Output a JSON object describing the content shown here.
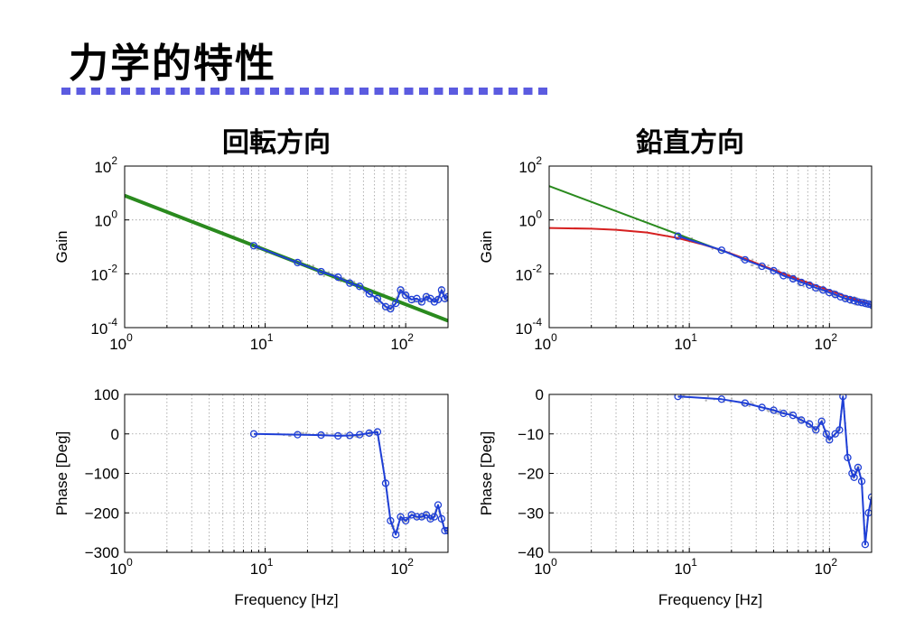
{
  "page": {
    "title": "力学的特性",
    "left_heading": "回転方向",
    "right_heading": "鉛直方向"
  },
  "colors": {
    "measurement": "#1f3fd6",
    "fit_green": "#2a8a1e",
    "fit_red": "#d62020",
    "raw_points": "#b8b8b8",
    "title_underline": "#5b5be0"
  },
  "chart_data": [
    {
      "id": "gain-rotation",
      "type": "line",
      "xscale": "log",
      "yscale": "log",
      "xlim": [
        1,
        200
      ],
      "ylim": [
        0.0001,
        100
      ],
      "xticks": [
        {
          "v": 1,
          "b": "10",
          "e": "0"
        },
        {
          "v": 10,
          "b": "10",
          "e": "1"
        },
        {
          "v": 100,
          "b": "10",
          "e": "2"
        }
      ],
      "yticks": [
        {
          "v": 0.0001,
          "b": "10",
          "e": "-4"
        },
        {
          "v": 0.01,
          "b": "10",
          "e": "-2"
        },
        {
          "v": 1,
          "b": "10",
          "e": "0"
        },
        {
          "v": 100,
          "b": "10",
          "e": "2"
        }
      ],
      "xlabel": "",
      "ylabel": "Gain",
      "grid": true,
      "series": [
        {
          "kind": "fit",
          "color": "#2a8a1e",
          "width": 4,
          "x": [
            1,
            200
          ],
          "y": [
            8.0,
            0.00018
          ]
        },
        {
          "kind": "measured",
          "color": "#1f3fd6",
          "x": [
            8.3,
            17,
            25,
            33,
            40,
            47,
            55,
            63,
            72,
            78,
            85,
            92,
            100,
            110,
            120,
            130,
            140,
            150,
            160,
            170,
            180,
            190,
            200
          ],
          "y": [
            0.11,
            0.026,
            0.012,
            0.0075,
            0.0045,
            0.0034,
            0.0018,
            0.0012,
            0.0006,
            0.0005,
            0.0008,
            0.0025,
            0.0016,
            0.0011,
            0.0012,
            0.0009,
            0.0014,
            0.0012,
            0.0009,
            0.0011,
            0.0025,
            0.0012,
            0.0014
          ]
        }
      ]
    },
    {
      "id": "gain-vertical",
      "type": "line",
      "xscale": "log",
      "yscale": "log",
      "xlim": [
        1,
        200
      ],
      "ylim": [
        0.0001,
        100
      ],
      "xticks": [
        {
          "v": 1,
          "b": "10",
          "e": "0"
        },
        {
          "v": 10,
          "b": "10",
          "e": "1"
        },
        {
          "v": 100,
          "b": "10",
          "e": "2"
        }
      ],
      "yticks": [
        {
          "v": 0.0001,
          "b": "10",
          "e": "-4"
        },
        {
          "v": 0.01,
          "b": "10",
          "e": "-2"
        },
        {
          "v": 1,
          "b": "10",
          "e": "0"
        },
        {
          "v": 100,
          "b": "10",
          "e": "2"
        }
      ],
      "xlabel": "",
      "ylabel": "Gain",
      "grid": true,
      "series": [
        {
          "kind": "fit",
          "color": "#2a8a1e",
          "width": 2,
          "x": [
            1,
            18
          ],
          "y": [
            18,
            0.065
          ]
        },
        {
          "kind": "fit",
          "color": "#d62020",
          "width": 2,
          "x": [
            1,
            2,
            3,
            5,
            8,
            12,
            17,
            25,
            35,
            50,
            70,
            100,
            140,
            200
          ],
          "y": [
            0.5,
            0.47,
            0.43,
            0.34,
            0.22,
            0.13,
            0.075,
            0.036,
            0.018,
            0.009,
            0.0047,
            0.0024,
            0.0013,
            0.0007
          ]
        },
        {
          "kind": "measured",
          "color": "#1f3fd6",
          "x": [
            8.3,
            17,
            25,
            33,
            40,
            47,
            55,
            63,
            72,
            80,
            90,
            100,
            110,
            120,
            130,
            140,
            150,
            160,
            170,
            180,
            190,
            200
          ],
          "y": [
            0.25,
            0.075,
            0.033,
            0.019,
            0.013,
            0.0085,
            0.0065,
            0.0048,
            0.0038,
            0.003,
            0.0025,
            0.002,
            0.0017,
            0.0014,
            0.0012,
            0.0011,
            0.001,
            0.0009,
            0.00085,
            0.0008,
            0.00075,
            0.0007
          ]
        }
      ]
    },
    {
      "id": "phase-rotation",
      "type": "line",
      "xscale": "log",
      "yscale": "linear",
      "xlim": [
        1,
        200
      ],
      "ylim": [
        -300,
        100
      ],
      "xticks": [
        {
          "v": 1,
          "b": "10",
          "e": "0"
        },
        {
          "v": 10,
          "b": "10",
          "e": "1"
        },
        {
          "v": 100,
          "b": "10",
          "e": "2"
        }
      ],
      "yticks": [
        {
          "v": 100,
          "t": "100"
        },
        {
          "v": 0,
          "t": "0"
        },
        {
          "v": -100,
          "t": "−100"
        },
        {
          "v": -200,
          "t": "−200"
        },
        {
          "v": -300,
          "t": "−300"
        }
      ],
      "xlabel": "Frequency [Hz]",
      "ylabel": "Phase [Deg]",
      "grid": true,
      "series": [
        {
          "kind": "measured",
          "color": "#1f3fd6",
          "x": [
            8.3,
            17,
            25,
            33,
            40,
            47,
            55,
            63,
            72,
            78,
            85,
            92,
            100,
            110,
            120,
            130,
            140,
            150,
            160,
            170,
            180,
            190,
            200
          ],
          "y": [
            0,
            -2,
            -3,
            -5,
            -4,
            -2,
            2,
            5,
            -125,
            -220,
            -255,
            -210,
            -220,
            -205,
            -210,
            -210,
            -205,
            -215,
            -210,
            -180,
            -215,
            -245,
            -245
          ]
        }
      ]
    },
    {
      "id": "phase-vertical",
      "type": "line",
      "xscale": "log",
      "yscale": "linear",
      "xlim": [
        1,
        200
      ],
      "ylim": [
        -40,
        0
      ],
      "xticks": [
        {
          "v": 1,
          "b": "10",
          "e": "0"
        },
        {
          "v": 10,
          "b": "10",
          "e": "1"
        },
        {
          "v": 100,
          "b": "10",
          "e": "2"
        }
      ],
      "yticks": [
        {
          "v": 0,
          "t": "0"
        },
        {
          "v": -10,
          "t": "−10"
        },
        {
          "v": -20,
          "t": "−20"
        },
        {
          "v": -30,
          "t": "−30"
        },
        {
          "v": -40,
          "t": "−40"
        }
      ],
      "xlabel": "Frequency [Hz]",
      "ylabel": "Phase [Deg]",
      "grid": true,
      "series": [
        {
          "kind": "measured",
          "color": "#1f3fd6",
          "x": [
            8.3,
            17,
            25,
            33,
            40,
            47,
            55,
            63,
            72,
            80,
            88,
            95,
            100,
            110,
            118,
            125,
            135,
            145,
            150,
            160,
            170,
            180,
            190,
            200
          ],
          "y": [
            -0.5,
            -1.2,
            -2.2,
            -3.3,
            -4,
            -4.8,
            -5.3,
            -6.5,
            -7.5,
            -9,
            -6.8,
            -10,
            -11.5,
            -10,
            -9,
            -0.5,
            -16,
            -20,
            -21,
            -18.5,
            -22,
            -38,
            -30,
            -26
          ]
        }
      ]
    }
  ]
}
